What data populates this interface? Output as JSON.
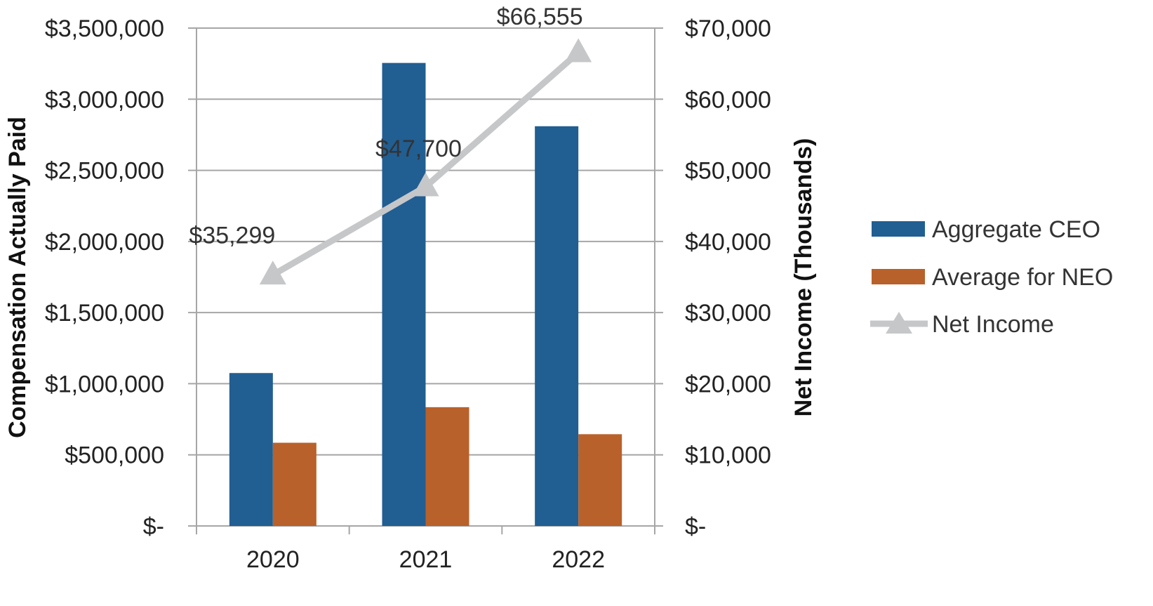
{
  "chart_data": {
    "type": "bar",
    "categories": [
      "2020",
      "2021",
      "2022"
    ],
    "series": [
      {
        "name": "Aggregate CEO",
        "axis": "left",
        "type": "bar",
        "color": "#215e92",
        "values": [
          1075000,
          3255000,
          2810000
        ]
      },
      {
        "name": "Average for NEO",
        "axis": "left",
        "type": "bar",
        "color": "#b9612a",
        "values": [
          585000,
          835000,
          645000
        ]
      },
      {
        "name": "Net Income",
        "axis": "right",
        "type": "line",
        "color": "#c6c7c9",
        "values": [
          35299,
          47700,
          66555
        ],
        "labels": [
          "$35,299",
          "$47,700",
          "$66,555"
        ]
      }
    ],
    "ylabel": "Compensation Actually Paid",
    "y2label": "Net Income (Thousands)",
    "ylim": [
      0,
      3500000
    ],
    "y2lim": [
      0,
      70000
    ],
    "yticks": [
      0,
      500000,
      1000000,
      1500000,
      2000000,
      2500000,
      3000000,
      3500000
    ],
    "ytick_labels": [
      "$-",
      "$500,000",
      "$1,000,000",
      "$1,500,000",
      "$2,000,000",
      "$2,500,000",
      "$3,000,000",
      "$3,500,000"
    ],
    "y2ticks": [
      0,
      10000,
      20000,
      30000,
      40000,
      50000,
      60000,
      70000
    ],
    "y2tick_labels": [
      "$-",
      "$10,000",
      "$20,000",
      "$30,000",
      "$40,000",
      "$50,000",
      "$60,000",
      "$70,000"
    ],
    "grid": true,
    "legend": "right",
    "grid_color": "#a6a6a6"
  }
}
